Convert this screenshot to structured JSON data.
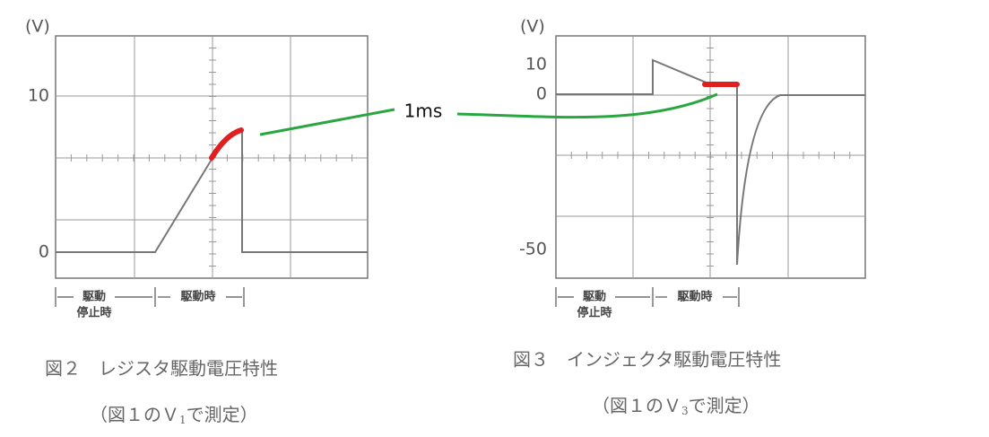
{
  "annotation": "1ms",
  "panels": [
    {
      "unit": "(V)",
      "y_labels": [
        "10",
        "0"
      ],
      "phase_labels": {
        "stop_top": "駆動",
        "stop_bottom": "停止時",
        "drive": "駆動時"
      },
      "caption": "図２　レジスタ駆動電圧特性",
      "sub_caption": {
        "before": "（図１のＶ",
        "subscript": "1",
        "after": "で測定）"
      }
    },
    {
      "unit": "(V)",
      "y_labels": [
        "10",
        "0",
        "-50"
      ],
      "phase_labels": {
        "stop_top": "駆動",
        "stop_bottom": "停止時",
        "drive": "駆動時"
      },
      "caption": "図３　インジェクタ駆動電圧特性",
      "sub_caption": {
        "before": "（図１のＶ",
        "subscript": "3",
        "after": "で測定）"
      }
    }
  ]
}
